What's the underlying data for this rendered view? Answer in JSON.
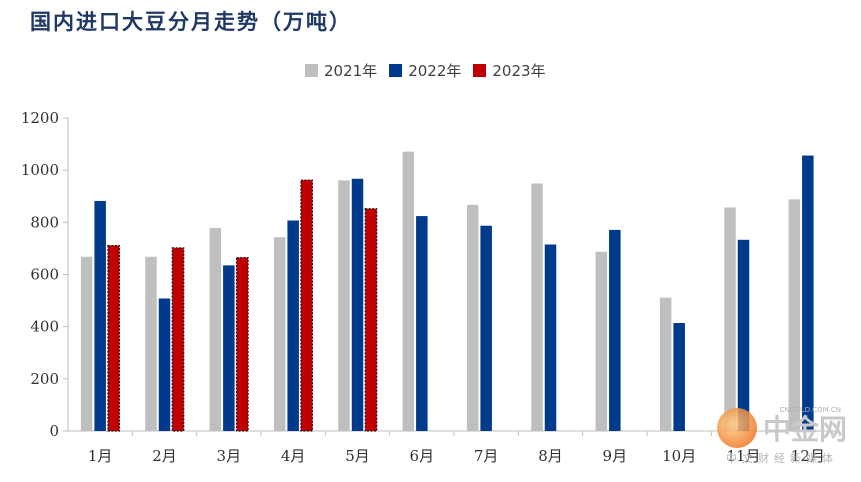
{
  "title": "国内进口大豆分月走势（万吨）",
  "colors": {
    "s2021": "#bfbfbf",
    "s2022": "#003a8c",
    "s2023": "#c00000",
    "axis": "#bfbfbf"
  },
  "watermark": {
    "name": "中金网",
    "sub": "中文财经新媒体",
    "url": "CNGOLD.COM.CN"
  },
  "chart_data": {
    "type": "bar",
    "categories": [
      "1月",
      "2月",
      "3月",
      "4月",
      "5月",
      "6月",
      "7月",
      "8月",
      "9月",
      "10月",
      "11月",
      "12月"
    ],
    "series": [
      {
        "name": "2021年",
        "values": [
          668,
          668,
          778,
          743,
          961,
          1071,
          867,
          949,
          687,
          511,
          857,
          888
        ]
      },
      {
        "name": "2022年",
        "values": [
          882,
          508,
          635,
          807,
          967,
          824,
          787,
          715,
          771,
          414,
          733,
          1056
        ]
      },
      {
        "name": "2023年",
        "values": [
          711,
          702,
          665,
          962,
          852,
          null,
          null,
          null,
          null,
          null,
          null,
          null
        ]
      }
    ],
    "yticks": [
      0,
      200,
      400,
      600,
      800,
      1000,
      1200
    ],
    "ylim": [
      0,
      1200
    ],
    "legend_position": "top-center"
  }
}
